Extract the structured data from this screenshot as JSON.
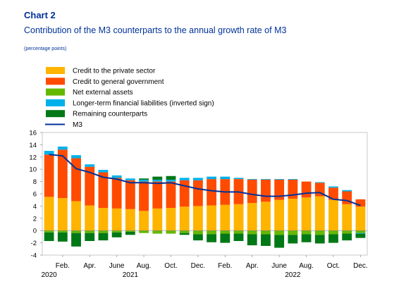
{
  "header": {
    "chart_number": "Chart 2",
    "title": "Contribution of the M3 counterparts to the annual growth rate of M3",
    "unit": "(percentage points)"
  },
  "colors": {
    "credit_private": "#FFB400",
    "credit_government": "#FF4B00",
    "net_external": "#65B800",
    "longer_term": "#00B1EA",
    "remaining": "#007816",
    "m3": "#003299"
  },
  "chart_data": {
    "type": "bar",
    "stacked": true,
    "ylim": [
      -4,
      16
    ],
    "yticks": [
      16,
      14,
      12,
      10,
      8,
      6,
      4,
      2,
      0,
      -2,
      -4
    ],
    "grid": false,
    "legend_position": "top-left",
    "months": [
      "Jan 2020",
      "Feb 2020",
      "Mar 2020",
      "Apr 2020",
      "May 2020",
      "Jun 2020",
      "Jul 2020",
      "Aug 2020",
      "Sep 2020",
      "Oct 2020",
      "Nov 2020",
      "Dec 2020",
      "Jan 2021",
      "Feb 2021",
      "Mar 2021",
      "Apr 2021",
      "May 2021",
      "Jun 2021",
      "Jul 2021",
      "Aug 2021",
      "Sep 2021",
      "Oct 2021",
      "Nov 2021",
      "Dec 2021"
    ],
    "x_tick_labels": [
      "Feb.",
      "Apr.",
      "June",
      "Aug.",
      "Oct.",
      "Dec.",
      "Feb.",
      "Apr.",
      "June",
      "Aug.",
      "Oct.",
      "Dec."
    ],
    "x_tick_positions": [
      1,
      3,
      5,
      7,
      9,
      11,
      13,
      15,
      17,
      19,
      21,
      23
    ],
    "year_labels": [
      {
        "label": "2020",
        "position": 0
      },
      {
        "label": "2021",
        "position": 6
      },
      {
        "label": "2022",
        "position": 18
      }
    ],
    "series": [
      {
        "name": "Credit to the private sector",
        "color_key": "credit_private",
        "values": [
          5.5,
          5.3,
          4.8,
          4.1,
          3.7,
          3.6,
          3.5,
          3.2,
          3.6,
          3.7,
          3.9,
          4.0,
          4.1,
          4.2,
          4.3,
          4.5,
          4.7,
          5.0,
          5.2,
          5.4,
          5.6,
          5.0,
          4.3,
          3.9
        ]
      },
      {
        "name": "Credit to general government",
        "color_key": "credit_government",
        "values": [
          6.9,
          7.9,
          7.0,
          6.3,
          5.8,
          5.0,
          4.7,
          4.8,
          4.4,
          4.3,
          4.3,
          4.2,
          4.3,
          4.2,
          4.1,
          3.8,
          3.6,
          3.3,
          3.1,
          2.6,
          2.2,
          2.0,
          2.1,
          1.2
        ]
      },
      {
        "name": "Net external assets",
        "color_key": "net_external",
        "values": [
          -0.3,
          -0.3,
          -0.4,
          -0.4,
          -0.4,
          -0.3,
          -0.2,
          -0.4,
          -0.5,
          -0.5,
          -0.4,
          -0.6,
          -0.6,
          -0.5,
          -0.5,
          -0.6,
          -0.6,
          -0.7,
          -0.7,
          -0.6,
          -0.7,
          -0.6,
          -0.5,
          -0.4
        ]
      },
      {
        "name": "Longer-term financial liabilities (inverted sign)",
        "color_key": "longer_term",
        "values": [
          0.6,
          0.5,
          0.5,
          0.4,
          0.4,
          0.4,
          0.3,
          0.3,
          0.3,
          0.3,
          0.4,
          0.4,
          0.4,
          0.4,
          0.2,
          0.1,
          0.1,
          0.1,
          0.1,
          0.0,
          0.1,
          0.2,
          0.2,
          -0.1
        ]
      },
      {
        "name": "Remaining counterparts",
        "color_key": "remaining",
        "values": [
          -1.4,
          -1.5,
          -2.2,
          -1.3,
          -1.2,
          -0.8,
          -0.5,
          0.2,
          0.5,
          0.6,
          -0.3,
          -1.0,
          -1.3,
          -1.5,
          -1.2,
          -1.8,
          -1.9,
          -2.1,
          -1.4,
          -1.3,
          -1.4,
          -1.4,
          -1.1,
          -0.7
        ]
      }
    ],
    "line": {
      "name": "M3",
      "color_key": "m3",
      "values": [
        12.4,
        12.2,
        10.1,
        9.5,
        8.7,
        8.4,
        7.8,
        7.8,
        7.7,
        7.8,
        7.3,
        6.8,
        6.5,
        6.3,
        6.3,
        5.9,
        5.6,
        5.6,
        5.8,
        6.1,
        6.2,
        5.1,
        4.9,
        4.1
      ]
    }
  }
}
